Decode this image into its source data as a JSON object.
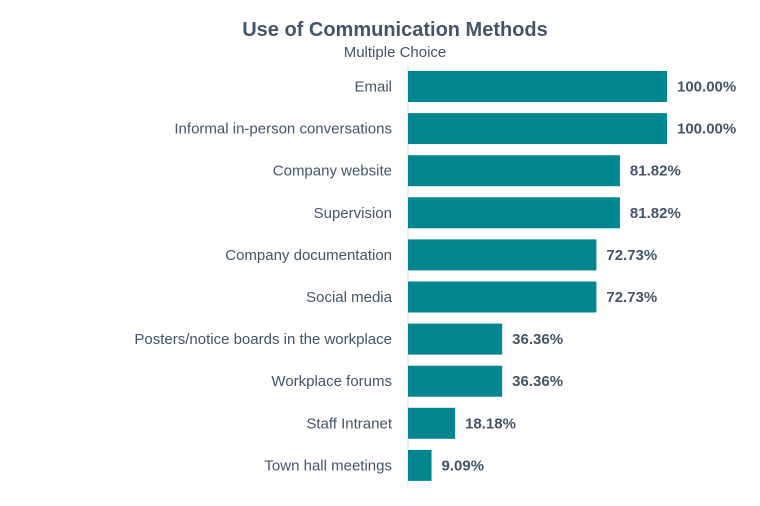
{
  "chart_data": {
    "type": "bar",
    "orientation": "horizontal",
    "title": "Use of Communication Methods",
    "subtitle": "Multiple Choice",
    "categories": [
      "Email",
      "Informal in-person conversations",
      "Company website",
      "Supervision",
      "Company documentation",
      "Social media",
      "Posters/notice boards in the workplace",
      "Workplace forums",
      "Staff Intranet",
      "Town hall meetings"
    ],
    "values": [
      100.0,
      100.0,
      81.82,
      81.82,
      72.73,
      72.73,
      36.36,
      36.36,
      18.18,
      9.09
    ],
    "value_labels": [
      "100.00%",
      "100.00%",
      "81.82%",
      "81.82%",
      "72.73%",
      "72.73%",
      "36.36%",
      "36.36%",
      "18.18%",
      "9.09%"
    ],
    "xlim": [
      0,
      100
    ],
    "grid": false,
    "legend": "none",
    "bar_color": "#00868f"
  }
}
